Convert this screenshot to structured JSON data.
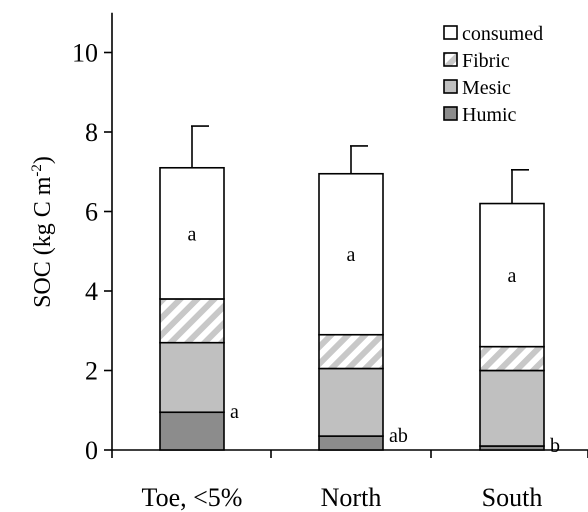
{
  "chart_data": {
    "type": "bar",
    "stacked": true,
    "categories": [
      "Toe, <5%",
      "North",
      "South"
    ],
    "ylabel_main": "SOC (kg C m",
    "ylabel_sup": "-2",
    "ylabel_close": ")",
    "ylim": [
      0,
      11
    ],
    "yticks": [
      "0",
      "2",
      "4",
      "6",
      "8",
      "10"
    ],
    "legend_position": "top-right",
    "series": [
      {
        "name": "Humic",
        "values": [
          0.95,
          0.35,
          0.1
        ],
        "color": "#8c8c8c",
        "pattern": "solid"
      },
      {
        "name": "Mesic",
        "values": [
          1.75,
          1.7,
          1.9
        ],
        "color": "#c0c0c0",
        "pattern": "solid"
      },
      {
        "name": "Fibric",
        "values": [
          1.1,
          0.85,
          0.6
        ],
        "color": "#ffffff",
        "pattern": "hatch"
      },
      {
        "name": "consumed",
        "values": [
          3.3,
          4.05,
          3.6
        ],
        "color": "#ffffff",
        "pattern": "solid"
      }
    ],
    "totals": [
      7.1,
      6.95,
      6.2
    ],
    "error_upper": [
      8.15,
      7.65,
      7.05
    ],
    "top_labels": [
      "a",
      "a",
      "a"
    ],
    "humic_labels": [
      "a",
      "ab",
      "b"
    ]
  }
}
